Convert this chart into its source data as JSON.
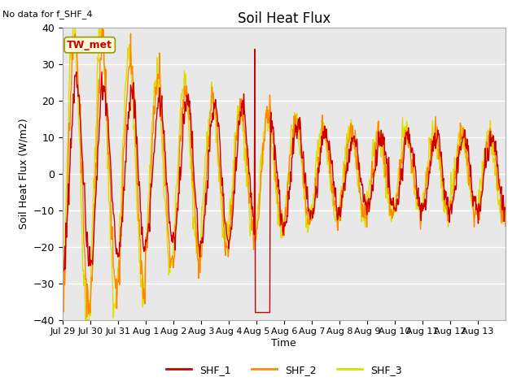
{
  "title": "Soil Heat Flux",
  "ylabel": "Soil Heat Flux (W/m2)",
  "xlabel": "Time",
  "note": "No data for f_SHF_4",
  "tw_met_label": "TW_met",
  "ylim": [
    -40,
    40
  ],
  "yticks": [
    -40,
    -30,
    -20,
    -10,
    0,
    10,
    20,
    30,
    40
  ],
  "xtick_labels": [
    "Jul 29",
    "Jul 30",
    "Jul 31",
    "Aug 1",
    "Aug 2",
    "Aug 3",
    "Aug 4",
    "Aug 5",
    "Aug 6",
    "Aug 7",
    "Aug 8",
    "Aug 9",
    "Aug 10",
    "Aug 11",
    "Aug 12",
    "Aug 13"
  ],
  "n_days": 16,
  "colors": {
    "SHF_1": "#cc0000",
    "SHF_2": "#ff8800",
    "SHF_3": "#dddd00",
    "tw_met_box_face": "#ffffdd",
    "tw_met_box_edge": "#999900",
    "tw_met_text": "#cc0000",
    "background": "#e8e8e8",
    "grid": "#ffffff"
  },
  "legend": {
    "SHF_1": "SHF_1",
    "SHF_2": "SHF_2",
    "SHF_3": "SHF_3"
  }
}
